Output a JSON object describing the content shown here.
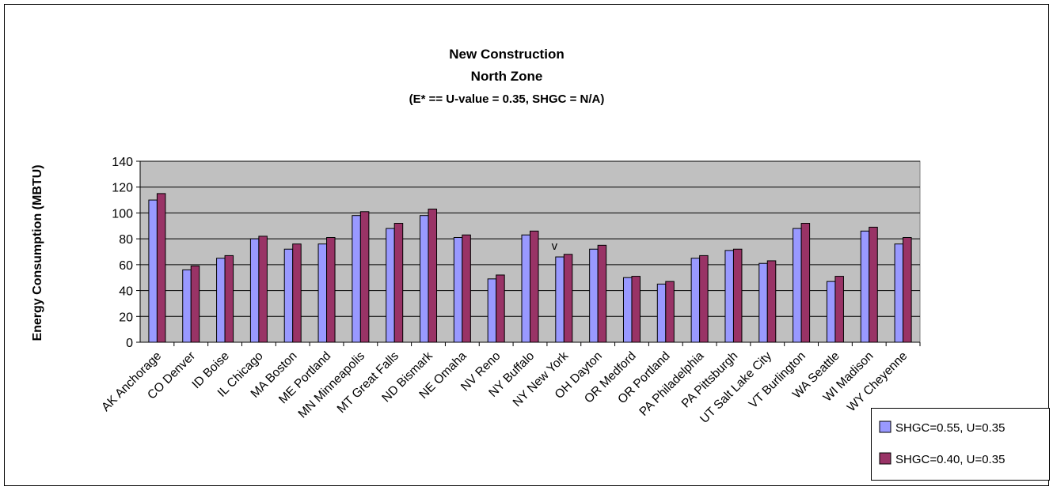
{
  "chart_data": {
    "type": "bar",
    "title": [
      "New Construction",
      "North Zone",
      "(E* == U-value = 0.35, SHGC = N/A)"
    ],
    "ylabel": "Energy Consumption (MBTU)",
    "xlabel": "",
    "ylim": [
      0,
      140
    ],
    "yticks": [
      0,
      20,
      40,
      60,
      80,
      100,
      120,
      140
    ],
    "grid": true,
    "legend_position": "bottom-right",
    "categories": [
      "AK Anchorage",
      "CO Denver",
      "ID Boise",
      "IL Chicago",
      "MA Boston",
      "ME Portland",
      "MN Minneapolis",
      "MT Great Falls",
      "ND Bismark",
      "NE Omaha",
      "NV Reno",
      "NY Buffalo",
      "NY New York",
      "OH Dayton",
      "OR Medford",
      "OR Portland",
      "PA Philadelphia",
      "PA Pittsburgh",
      "UT Salt Lake City",
      "VT Burlington",
      "WA Seattle",
      "WI Madison",
      "WY Cheyenne"
    ],
    "series": [
      {
        "name": "SHGC=0.55, U=0.35",
        "color": "#9999ff",
        "values": [
          110,
          56,
          65,
          80,
          72,
          76,
          98,
          88,
          98,
          81,
          49,
          83,
          66,
          72,
          50,
          45,
          65,
          71,
          61,
          88,
          47,
          86,
          76
        ]
      },
      {
        "name": "SHGC=0.40, U=0.35",
        "color": "#993366",
        "values": [
          115,
          59,
          67,
          82,
          76,
          81,
          101,
          92,
          103,
          83,
          52,
          86,
          68,
          75,
          51,
          47,
          67,
          72,
          63,
          92,
          51,
          89,
          81
        ]
      }
    ],
    "annotation": {
      "text": "v",
      "category": "NY New York"
    },
    "plot_background": "#c0c0c0"
  }
}
